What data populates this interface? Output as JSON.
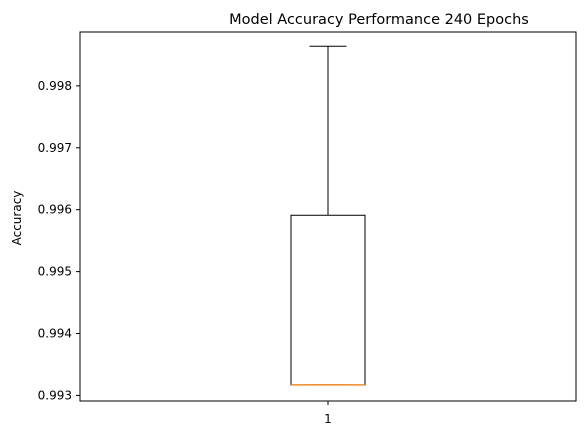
{
  "chart_data": {
    "type": "box",
    "title": "Model Accuracy Performance  240 Epochs",
    "xlabel": "",
    "ylabel": "Accuracy",
    "categories": [
      "1"
    ],
    "ylim": [
      0.99291,
      0.99887
    ],
    "yticks": [
      "0.993",
      "0.994",
      "0.995",
      "0.996",
      "0.997",
      "0.998"
    ],
    "grid": false,
    "box": {
      "whisker_low": 0.99317,
      "q1": 0.99317,
      "median": 0.99317,
      "q3": 0.99591,
      "whisker_high": 0.99864
    },
    "colors": {
      "box": "#000000",
      "median": "#f28e2b",
      "axes": "#000000"
    }
  }
}
